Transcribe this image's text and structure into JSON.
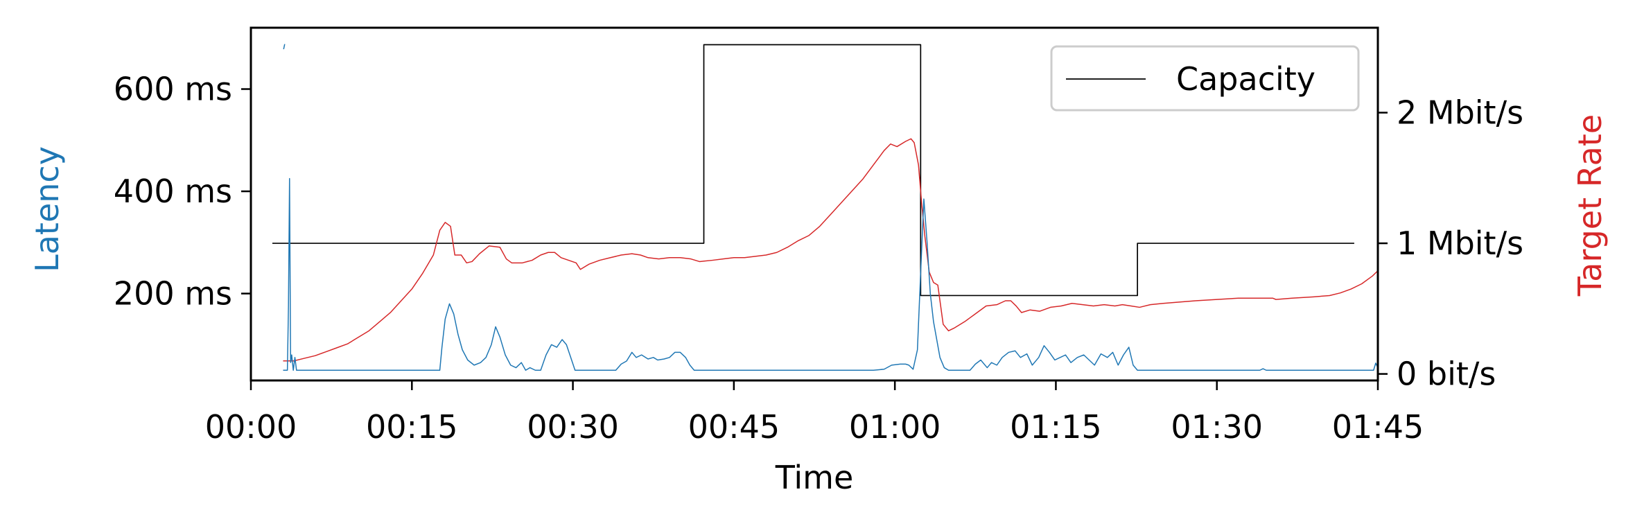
{
  "chart_data": {
    "type": "line",
    "x_axis": {
      "label": "Time",
      "unit": "seconds",
      "range": [
        0,
        105
      ],
      "ticks": [
        0,
        15,
        30,
        45,
        60,
        75,
        90,
        105
      ],
      "tick_labels": [
        "00:00",
        "00:15",
        "00:30",
        "00:45",
        "01:00",
        "01:15",
        "01:30",
        "01:45"
      ]
    },
    "y_left": {
      "label": "Latency",
      "color": "#1f77b4",
      "unit": "ms",
      "range": [
        30,
        720
      ],
      "ticks": [
        200,
        400,
        600
      ],
      "tick_labels": [
        "200 ms",
        "400 ms",
        "600 ms"
      ]
    },
    "y_right": {
      "label": "Target Rate",
      "color": "#d62728",
      "unit": "Mbit/s",
      "range": [
        -0.05,
        2.65
      ],
      "ticks": [
        0,
        1,
        2
      ],
      "tick_labels": [
        "0 bit/s",
        "1 Mbit/s",
        "2 Mbit/s"
      ]
    },
    "legend": {
      "position": "top-right",
      "entries": [
        {
          "name": "Capacity",
          "color": "#000000"
        }
      ]
    },
    "series": [
      {
        "name": "Capacity",
        "axis": "right",
        "color": "#000000",
        "step": true,
        "points": [
          [
            2,
            1.0
          ],
          [
            42.2,
            1.0
          ],
          [
            42.2,
            2.52
          ],
          [
            62.4,
            2.52
          ],
          [
            62.4,
            0.6
          ],
          [
            82.6,
            0.6
          ],
          [
            82.6,
            1.0
          ],
          [
            102.8,
            1.0
          ]
        ]
      },
      {
        "name": "Target Rate",
        "axis": "right",
        "color": "#d62728",
        "points": [
          [
            3,
            0.1
          ],
          [
            4,
            0.1
          ],
          [
            5,
            0.12
          ],
          [
            6,
            0.14
          ],
          [
            7,
            0.17
          ],
          [
            8,
            0.2
          ],
          [
            9,
            0.23
          ],
          [
            10,
            0.28
          ],
          [
            11,
            0.33
          ],
          [
            12,
            0.4
          ],
          [
            13,
            0.47
          ],
          [
            14,
            0.56
          ],
          [
            15,
            0.65
          ],
          [
            16,
            0.77
          ],
          [
            17,
            0.91
          ],
          [
            17.6,
            1.1
          ],
          [
            18.1,
            1.16
          ],
          [
            18.6,
            1.13
          ],
          [
            19,
            0.91
          ],
          [
            19.6,
            0.91
          ],
          [
            20.1,
            0.85
          ],
          [
            20.6,
            0.86
          ],
          [
            21.3,
            0.92
          ],
          [
            22.2,
            0.98
          ],
          [
            23.2,
            0.97
          ],
          [
            23.8,
            0.88
          ],
          [
            24.3,
            0.85
          ],
          [
            25.3,
            0.85
          ],
          [
            26.2,
            0.87
          ],
          [
            27,
            0.91
          ],
          [
            27.7,
            0.93
          ],
          [
            28.3,
            0.93
          ],
          [
            28.9,
            0.89
          ],
          [
            29.6,
            0.87
          ],
          [
            30.3,
            0.85
          ],
          [
            30.7,
            0.8
          ],
          [
            31.5,
            0.84
          ],
          [
            32.5,
            0.87
          ],
          [
            33.5,
            0.89
          ],
          [
            34.5,
            0.91
          ],
          [
            35.5,
            0.92
          ],
          [
            36.3,
            0.91
          ],
          [
            37,
            0.89
          ],
          [
            38,
            0.88
          ],
          [
            39,
            0.89
          ],
          [
            40,
            0.89
          ],
          [
            41,
            0.88
          ],
          [
            41.8,
            0.86
          ],
          [
            43,
            0.87
          ],
          [
            44,
            0.88
          ],
          [
            45,
            0.89
          ],
          [
            46,
            0.89
          ],
          [
            47,
            0.9
          ],
          [
            48,
            0.91
          ],
          [
            49,
            0.93
          ],
          [
            50,
            0.97
          ],
          [
            51,
            1.02
          ],
          [
            52,
            1.06
          ],
          [
            53,
            1.13
          ],
          [
            54,
            1.22
          ],
          [
            55,
            1.31
          ],
          [
            56,
            1.4
          ],
          [
            57,
            1.49
          ],
          [
            58,
            1.6
          ],
          [
            59,
            1.71
          ],
          [
            59.6,
            1.76
          ],
          [
            60.2,
            1.74
          ],
          [
            61,
            1.78
          ],
          [
            61.5,
            1.8
          ],
          [
            61.8,
            1.77
          ],
          [
            62.2,
            1.6
          ],
          [
            62.5,
            1.3
          ],
          [
            62.8,
            1.05
          ],
          [
            63.2,
            0.78
          ],
          [
            63.6,
            0.7
          ],
          [
            64,
            0.68
          ],
          [
            64.5,
            0.38
          ],
          [
            65,
            0.33
          ],
          [
            65.5,
            0.35
          ],
          [
            66.5,
            0.4
          ],
          [
            67.5,
            0.46
          ],
          [
            68.5,
            0.52
          ],
          [
            69.5,
            0.53
          ],
          [
            70.3,
            0.56
          ],
          [
            70.8,
            0.56
          ],
          [
            71.3,
            0.52
          ],
          [
            71.8,
            0.47
          ],
          [
            72.6,
            0.49
          ],
          [
            73.5,
            0.48
          ],
          [
            74.5,
            0.51
          ],
          [
            75.5,
            0.52
          ],
          [
            76.5,
            0.54
          ],
          [
            77.5,
            0.53
          ],
          [
            78.5,
            0.52
          ],
          [
            79.5,
            0.53
          ],
          [
            80.5,
            0.52
          ],
          [
            81.2,
            0.53
          ],
          [
            82,
            0.52
          ],
          [
            82.8,
            0.51
          ],
          [
            83.8,
            0.53
          ],
          [
            85,
            0.54
          ],
          [
            86.5,
            0.55
          ],
          [
            88,
            0.56
          ],
          [
            90,
            0.57
          ],
          [
            92,
            0.58
          ],
          [
            94,
            0.58
          ],
          [
            95.2,
            0.58
          ],
          [
            95.5,
            0.57
          ],
          [
            97,
            0.58
          ],
          [
            99,
            0.59
          ],
          [
            100.5,
            0.6
          ],
          [
            101.5,
            0.62
          ],
          [
            102.5,
            0.65
          ],
          [
            103.5,
            0.69
          ],
          [
            104.5,
            0.75
          ],
          [
            105,
            0.79
          ]
        ]
      },
      {
        "name": "Latency",
        "axis": "left",
        "color": "#1f77b4",
        "points": [
          [
            3,
            50
          ],
          [
            3.4,
            50
          ],
          [
            3.5,
            175
          ],
          [
            3.6,
            425
          ],
          [
            3.7,
            65
          ],
          [
            3.8,
            80
          ],
          [
            3.95,
            50
          ],
          [
            4.1,
            75
          ],
          [
            4.25,
            50
          ],
          [
            5,
            50
          ],
          [
            8,
            50
          ],
          [
            12,
            50
          ],
          [
            17,
            50
          ],
          [
            17.6,
            50
          ],
          [
            17.8,
            95
          ],
          [
            18.1,
            150
          ],
          [
            18.5,
            180
          ],
          [
            18.9,
            160
          ],
          [
            19.3,
            120
          ],
          [
            19.7,
            90
          ],
          [
            20.2,
            70
          ],
          [
            20.8,
            60
          ],
          [
            21.4,
            65
          ],
          [
            21.9,
            75
          ],
          [
            22.4,
            100
          ],
          [
            22.8,
            135
          ],
          [
            23.2,
            115
          ],
          [
            23.7,
            80
          ],
          [
            24.2,
            60
          ],
          [
            24.7,
            55
          ],
          [
            25.2,
            65
          ],
          [
            25.6,
            50
          ],
          [
            26,
            55
          ],
          [
            26.5,
            50
          ],
          [
            27,
            50
          ],
          [
            27.5,
            80
          ],
          [
            28,
            100
          ],
          [
            28.5,
            95
          ],
          [
            29,
            110
          ],
          [
            29.4,
            100
          ],
          [
            29.8,
            75
          ],
          [
            30.2,
            50
          ],
          [
            31,
            50
          ],
          [
            32.5,
            50
          ],
          [
            34,
            50
          ],
          [
            34.5,
            62
          ],
          [
            35,
            68
          ],
          [
            35.5,
            85
          ],
          [
            35.9,
            75
          ],
          [
            36.4,
            80
          ],
          [
            37,
            72
          ],
          [
            37.5,
            75
          ],
          [
            37.9,
            70
          ],
          [
            38.5,
            72
          ],
          [
            39,
            75
          ],
          [
            39.5,
            85
          ],
          [
            40,
            85
          ],
          [
            40.5,
            75
          ],
          [
            40.9,
            60
          ],
          [
            41.3,
            50
          ],
          [
            43,
            50
          ],
          [
            45,
            50
          ],
          [
            50,
            50
          ],
          [
            55,
            50
          ],
          [
            58,
            50
          ],
          [
            59,
            52
          ],
          [
            59.7,
            60
          ],
          [
            60.5,
            62
          ],
          [
            61,
            62
          ],
          [
            61.3,
            60
          ],
          [
            61.7,
            52
          ],
          [
            62.1,
            90
          ],
          [
            62.4,
            240
          ],
          [
            62.7,
            385
          ],
          [
            63,
            300
          ],
          [
            63.3,
            200
          ],
          [
            63.6,
            145
          ],
          [
            63.9,
            110
          ],
          [
            64.2,
            75
          ],
          [
            64.6,
            55
          ],
          [
            65,
            50
          ],
          [
            67,
            50
          ],
          [
            67.5,
            62
          ],
          [
            68,
            70
          ],
          [
            68.6,
            55
          ],
          [
            69,
            65
          ],
          [
            69.5,
            60
          ],
          [
            70,
            75
          ],
          [
            70.6,
            85
          ],
          [
            71.2,
            88
          ],
          [
            71.7,
            75
          ],
          [
            72.3,
            82
          ],
          [
            72.8,
            60
          ],
          [
            73.4,
            75
          ],
          [
            73.9,
            98
          ],
          [
            74.4,
            85
          ],
          [
            74.9,
            70
          ],
          [
            75.4,
            75
          ],
          [
            75.9,
            80
          ],
          [
            76.4,
            65
          ],
          [
            77,
            75
          ],
          [
            77.6,
            80
          ],
          [
            78.1,
            70
          ],
          [
            78.6,
            60
          ],
          [
            79.2,
            82
          ],
          [
            79.8,
            75
          ],
          [
            80.3,
            85
          ],
          [
            80.8,
            60
          ],
          [
            81.3,
            80
          ],
          [
            81.8,
            95
          ],
          [
            82.2,
            60
          ],
          [
            82.6,
            50
          ],
          [
            84,
            50
          ],
          [
            90,
            50
          ],
          [
            93,
            50
          ],
          [
            94,
            50
          ],
          [
            94.3,
            53
          ],
          [
            94.6,
            50
          ],
          [
            97,
            50
          ],
          [
            100,
            50
          ],
          [
            104,
            50
          ],
          [
            104.6,
            50
          ],
          [
            104.8,
            64
          ],
          [
            105,
            55
          ]
        ]
      },
      {
        "name": "Latency",
        "axis": "left",
        "color": "#1f77b4",
        "points": [
          [
            3.05,
            678
          ],
          [
            3.15,
            688
          ]
        ]
      }
    ]
  }
}
